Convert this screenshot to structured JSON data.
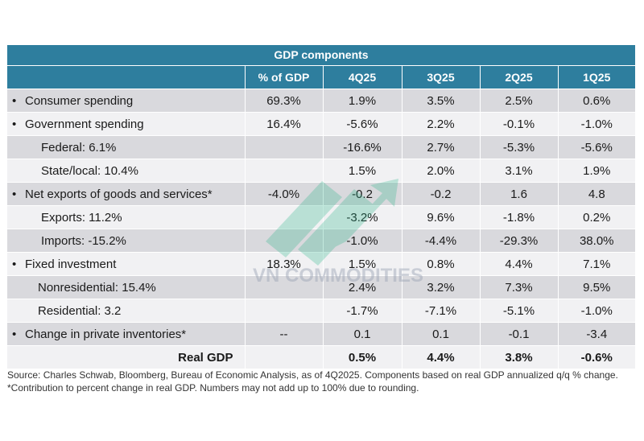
{
  "title": "GDP components",
  "columns": [
    "% of GDP",
    "4Q25",
    "3Q25",
    "2Q25",
    "1Q25"
  ],
  "rows": [
    {
      "label": "Consumer spending",
      "bullet": "•",
      "pct": "69.3%",
      "q4": "1.9%",
      "q3": "3.5%",
      "q2": "2.5%",
      "q1": "0.6%"
    },
    {
      "label": "Government spending",
      "bullet": "•",
      "pct": "16.4%",
      "q4": "-5.6%",
      "q3": "2.2%",
      "q2": "-0.1%",
      "q1": "-1.0%"
    },
    {
      "label": "Federal: 6.1%",
      "bullet": "",
      "pct": "",
      "q4": "-16.6%",
      "q3": "2.7%",
      "q2": "-5.3%",
      "q1": "-5.6%"
    },
    {
      "label": "State/local: 10.4%",
      "bullet": "",
      "pct": "",
      "q4": "1.5%",
      "q3": "2.0%",
      "q2": "3.1%",
      "q1": "1.9%"
    },
    {
      "label": "Net exports of goods and services*",
      "bullet": "•",
      "pct": "-4.0%",
      "q4": "-0.2",
      "q3": "-0.2",
      "q2": "1.6",
      "q1": "4.8"
    },
    {
      "label": "Exports: 11.2%",
      "bullet": "",
      "pct": "",
      "q4": "-3.2%",
      "q3": "9.6%",
      "q2": "-1.8%",
      "q1": "0.2%"
    },
    {
      "label": "Imports: -15.2%",
      "bullet": "",
      "pct": "",
      "q4": "-1.0%",
      "q3": "-4.4%",
      "q2": "-29.3%",
      "q1": "38.0%"
    },
    {
      "label": "Fixed investment",
      "bullet": "•",
      "pct": "18.3%",
      "q4": "1.5%",
      "q3": "0.8%",
      "q2": "4.4%",
      "q1": "7.1%"
    },
    {
      "label": "Nonresidential: 15.4%",
      "bullet": "",
      "pct": "",
      "q4": "2.4%",
      "q3": "3.2%",
      "q2": "7.3%",
      "q1": "9.5%"
    },
    {
      "label": "Residential: 3.2",
      "bullet": "",
      "pct": "",
      "q4": "-1.7%",
      "q3": "-7.1%",
      "q2": "-5.1%",
      "q1": "-1.0%"
    },
    {
      "label": "Change in private inventories*",
      "bullet": "•",
      "pct": "--",
      "q4": "0.1",
      "q3": "0.1",
      "q2": "-0.1",
      "q1": "-3.4"
    }
  ],
  "total": {
    "label": "Real GDP",
    "q4": "0.5%",
    "q3": "4.4%",
    "q2": "3.8%",
    "q1": "-0.6%"
  },
  "source": "Source: Charles Schwab, Bloomberg, Bureau of Economic Analysis, as of 4Q2025. Components based on real GDP annualized q/q % change. *Contribution to percent change in real GDP. Numbers may not add up to 100% due to rounding.",
  "watermark": "VN COMMODITIES",
  "colors": {
    "header": "#2e7e9e",
    "shade": "#d9d9dd",
    "plain": "#f1f1f3"
  }
}
